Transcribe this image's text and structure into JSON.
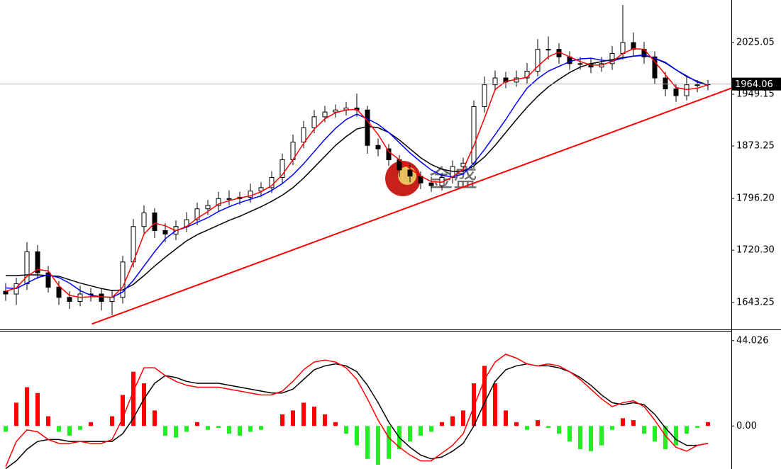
{
  "chart_data": [
    {
      "type": "candlestick",
      "open": [
        1660,
        1656,
        1671,
        1718,
        1687,
        1666,
        1651,
        1645,
        1656,
        1656,
        1645,
        1651,
        1703,
        1755,
        1775,
        1749,
        1744,
        1755,
        1765,
        1781,
        1786,
        1796,
        1796,
        1798,
        1807,
        1812,
        1827,
        1853,
        1879,
        1900,
        1916,
        1923,
        1926,
        1929,
        1926,
        1874,
        1869,
        1853,
        1838,
        1829,
        1819,
        1815,
        1827,
        1843,
        1848,
        1931,
        1963,
        1973,
        1967,
        1973,
        1983,
        2015,
        2015,
        2004,
        1994,
        1994,
        1989,
        1994,
        2009,
        2025,
        2015,
        2004,
        1973,
        1957,
        1947,
        1963,
        1963
      ],
      "high": [
        1672,
        1680,
        1732,
        1728,
        1697,
        1675,
        1660,
        1668,
        1665,
        1664,
        1662,
        1712,
        1766,
        1786,
        1782,
        1760,
        1764,
        1776,
        1790,
        1794,
        1806,
        1808,
        1806,
        1818,
        1820,
        1836,
        1862,
        1890,
        1910,
        1926,
        1932,
        1934,
        1938,
        1950,
        1932,
        1884,
        1876,
        1860,
        1846,
        1836,
        1828,
        1834,
        1852,
        1856,
        1940,
        1975,
        1984,
        1982,
        1984,
        1995,
        2030,
        2034,
        2024,
        2012,
        2004,
        2002,
        2004,
        2020,
        2080,
        2040,
        2026,
        2012,
        1982,
        1964,
        1975,
        1970,
        1970
      ],
      "low": [
        1646,
        1640,
        1662,
        1678,
        1658,
        1640,
        1634,
        1638,
        1645,
        1632,
        1625,
        1642,
        1695,
        1745,
        1738,
        1732,
        1735,
        1747,
        1757,
        1772,
        1778,
        1786,
        1787,
        1790,
        1798,
        1804,
        1818,
        1845,
        1870,
        1892,
        1908,
        1915,
        1918,
        1916,
        1862,
        1858,
        1844,
        1828,
        1820,
        1810,
        1806,
        1808,
        1818,
        1834,
        1840,
        1922,
        1954,
        1958,
        1960,
        1965,
        1975,
        2000,
        1994,
        1985,
        1985,
        1980,
        1982,
        1985,
        2000,
        2005,
        1994,
        1964,
        1946,
        1938,
        1940,
        1952,
        1955
      ],
      "close": [
        1656,
        1671,
        1718,
        1687,
        1666,
        1651,
        1645,
        1656,
        1656,
        1645,
        1651,
        1703,
        1755,
        1775,
        1749,
        1744,
        1755,
        1765,
        1781,
        1786,
        1796,
        1796,
        1798,
        1807,
        1812,
        1827,
        1853,
        1879,
        1900,
        1916,
        1923,
        1926,
        1929,
        1926,
        1874,
        1869,
        1853,
        1838,
        1829,
        1819,
        1815,
        1827,
        1843,
        1848,
        1931,
        1963,
        1973,
        1967,
        1973,
        1983,
        2015,
        2015,
        2004,
        1994,
        1994,
        1989,
        1994,
        2009,
        2025,
        2015,
        2004,
        1973,
        1957,
        1947,
        1963,
        1963,
        1964
      ],
      "up_color": "#ffffff",
      "down_color": "#000000",
      "series": [
        {
          "color": "#000000",
          "values": [
            1683,
            1683,
            1684,
            1684,
            1683,
            1682,
            1677,
            1672,
            1668,
            1664,
            1661,
            1662,
            1670,
            1683,
            1697,
            1710,
            1722,
            1734,
            1743,
            1750,
            1757,
            1764,
            1770,
            1777,
            1784,
            1792,
            1801,
            1812,
            1826,
            1842,
            1858,
            1874,
            1887,
            1898,
            1902,
            1900,
            1893,
            1882,
            1869,
            1856,
            1846,
            1839,
            1836,
            1836,
            1844,
            1857,
            1874,
            1893,
            1912,
            1930,
            1946,
            1960,
            1971,
            1981,
            1989,
            1994,
            1997,
            2000,
            2003,
            2005,
            2006,
            2002,
            1995,
            1985,
            1975,
            1968,
            1963
          ]
        },
        {
          "color": "#0000ff",
          "values": [
            1665,
            1664,
            1672,
            1680,
            1684,
            1680,
            1672,
            1661,
            1654,
            1652,
            1651,
            1659,
            1676,
            1697,
            1718,
            1737,
            1749,
            1754,
            1761,
            1768,
            1777,
            1784,
            1790,
            1795,
            1800,
            1808,
            1818,
            1831,
            1847,
            1865,
            1883,
            1899,
            1912,
            1920,
            1913,
            1905,
            1893,
            1878,
            1863,
            1850,
            1838,
            1830,
            1828,
            1832,
            1848,
            1868,
            1890,
            1912,
            1936,
            1958,
            1972,
            1983,
            1990,
            1997,
            2001,
            2002,
            1999,
            1998,
            2002,
            2005,
            2007,
            2002,
            1996,
            1985,
            1976,
            1967,
            1962
          ]
        },
        {
          "color": "#ff0000",
          "values": [
            1660,
            1665,
            1682,
            1692,
            1690,
            1668,
            1654,
            1651,
            1652,
            1652,
            1651,
            1666,
            1703,
            1744,
            1760,
            1756,
            1749,
            1755,
            1767,
            1777,
            1788,
            1793,
            1797,
            1800,
            1806,
            1815,
            1831,
            1853,
            1877,
            1898,
            1913,
            1922,
            1926,
            1927,
            1910,
            1890,
            1865,
            1853,
            1840,
            1829,
            1821,
            1820,
            1828,
            1839,
            1874,
            1914,
            1956,
            1968,
            1971,
            1974,
            1990,
            2004,
            2011,
            2004,
            1997,
            1992,
            1992,
            1997,
            2009,
            2016,
            2015,
            1997,
            1978,
            1959,
            1956,
            1958,
            1963
          ]
        }
      ],
      "trendline": {
        "x": [
          8.1,
          68.2
        ],
        "y": [
          1612,
          1958
        ],
        "color": "#ff0000"
      },
      "last_price": 1964.06,
      "watermark": "金盛",
      "ylim": [
        1604,
        2087.4
      ],
      "yticks": [
        2025.05,
        1949.15,
        1873.25,
        {
          "value": 1796.2,
          "label": "1796.20"
        },
        {
          "value": 1720.3,
          "label": "1720.30"
        },
        1643.25
      ]
    },
    {
      "type": "macd",
      "histogram": [
        -3,
        12,
        20,
        17,
        5,
        -3,
        -5,
        -2,
        2,
        0,
        5,
        16,
        28,
        22,
        8,
        -5,
        -6,
        -3,
        2,
        -2,
        -1,
        -4,
        -5,
        -3,
        -2,
        0,
        6,
        8,
        12,
        10,
        6,
        2,
        -4,
        -10,
        -17,
        -20,
        -17,
        -12,
        -8,
        -5,
        -3,
        2,
        5,
        8,
        22,
        31,
        22,
        8,
        2,
        -2,
        3,
        -1,
        -4,
        -8,
        -12,
        -13,
        -10,
        -2,
        4,
        3,
        -4,
        -8,
        -12,
        -10,
        -4,
        -1,
        2
      ],
      "up_color": "#ff0000",
      "down_color": "#22ee22",
      "series": [
        {
          "color": "#000000",
          "values": [
            -22,
            -18,
            -12,
            -8,
            -7,
            -7,
            -8,
            -8,
            -8,
            -8,
            -8,
            -4,
            4,
            14,
            22,
            26,
            25,
            23,
            22,
            22,
            22,
            21,
            20,
            19,
            18,
            17,
            17,
            19,
            24,
            29,
            31,
            32,
            31,
            28,
            21,
            12,
            2,
            -6,
            -11,
            -15,
            -17,
            -16,
            -13,
            -9,
            0,
            12,
            23,
            29,
            31,
            32,
            31,
            31,
            30,
            28,
            25,
            21,
            16,
            12,
            11,
            12,
            11,
            6,
            -1,
            -7,
            -10,
            -10,
            -9
          ]
        },
        {
          "color": "#ff0000",
          "values": [
            -21,
            -8,
            -2,
            -3,
            -7,
            -9,
            -9,
            -8,
            -9,
            -9,
            -7,
            4,
            18,
            30,
            30,
            26,
            23,
            21,
            20,
            20,
            20,
            19,
            18,
            17,
            16,
            16,
            18,
            23,
            29,
            33,
            34,
            33,
            30,
            24,
            14,
            3,
            -6,
            -11,
            -15,
            -18,
            -18,
            -14,
            -10,
            -4,
            10,
            24,
            33,
            37,
            35,
            32,
            31,
            32,
            31,
            28,
            24,
            19,
            14,
            10,
            12,
            13,
            10,
            3,
            -5,
            -11,
            -13,
            -10,
            -9
          ]
        }
      ],
      "ylim": [
        -22.2,
        48.7
      ],
      "yticks": [
        44.026,
        {
          "value": 0,
          "label": "0.00"
        }
      ]
    }
  ]
}
